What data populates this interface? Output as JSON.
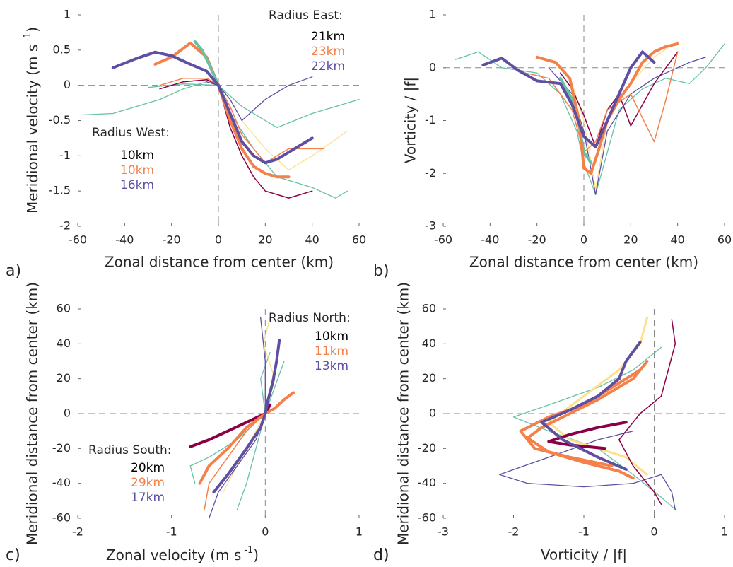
{
  "chart_data": [
    {
      "type": "line",
      "panel_label": "a)",
      "xlabel": "Zonal distance from center (km)",
      "ylabel": {
        "text": "Meridional velocity (m s",
        "superscript": "-1",
        "suffix": ")"
      },
      "xlim": [
        -60,
        60
      ],
      "ylim": [
        -2,
        1
      ],
      "xticks": [
        -60,
        -40,
        -20,
        0,
        20,
        40,
        60
      ],
      "yticks": [
        -2,
        -1.5,
        -1,
        -0.5,
        0,
        0.5,
        1
      ],
      "reference_lines": {
        "x": 0,
        "y": 0
      },
      "annotations": [
        {
          "title": "Radius East:",
          "entries": [
            {
              "text": "21km",
              "color": "#000000"
            },
            {
              "text": "23km",
              "color": "#f4804a"
            },
            {
              "text": "22km",
              "color": "#5e4fa2"
            }
          ]
        },
        {
          "title": "Radius West:",
          "entries": [
            {
              "text": "10km",
              "color": "#000000"
            },
            {
              "text": "10km",
              "color": "#f4804a"
            },
            {
              "text": "16km",
              "color": "#5e4fa2"
            }
          ]
        }
      ],
      "series": [
        {
          "color": "#66c2a5",
          "width": 1.3,
          "x": [
            -58,
            -45,
            -35,
            -25,
            -15,
            -5,
            0,
            5,
            15,
            25,
            40,
            50,
            55
          ],
          "values": [
            -0.42,
            -0.4,
            -0.3,
            -0.2,
            -0.05,
            0.05,
            0,
            -0.4,
            -0.9,
            -1.3,
            -1.45,
            -1.6,
            -1.5
          ]
        },
        {
          "color": "#66c2a5",
          "width": 1.3,
          "x": [
            -30,
            -15,
            0,
            10,
            25,
            40,
            50,
            60
          ],
          "values": [
            -0.03,
            0.02,
            0,
            -0.3,
            -0.6,
            -0.4,
            -0.3,
            -0.2
          ]
        },
        {
          "color": "#fee08b",
          "width": 1.3,
          "x": [
            -5,
            0,
            5,
            10,
            20,
            30,
            40,
            55
          ],
          "values": [
            0.1,
            0,
            -0.2,
            -0.5,
            -0.9,
            -1.2,
            -1.0,
            -0.65
          ]
        },
        {
          "color": "#5e4fa2",
          "width": 1.3,
          "x": [
            -5,
            0,
            5,
            10,
            20,
            30,
            40
          ],
          "values": [
            0.05,
            0,
            -0.2,
            -0.5,
            -0.2,
            0.0,
            0.12
          ]
        },
        {
          "color": "#8b0045",
          "width": 1.5,
          "x": [
            -25,
            -15,
            -5,
            0,
            5,
            10,
            15,
            20,
            30,
            40
          ],
          "values": [
            -0.05,
            0.05,
            0.08,
            0,
            -0.6,
            -1.0,
            -1.3,
            -1.5,
            -1.6,
            -1.5
          ]
        },
        {
          "color": "#f4804a",
          "width": 1.5,
          "x": [
            -25,
            -15,
            -5,
            0,
            5,
            10,
            20,
            30,
            45
          ],
          "values": [
            0,
            0.1,
            0.1,
            0,
            -0.3,
            -0.7,
            -1.1,
            -0.9,
            -0.9
          ]
        },
        {
          "color": "#f4804a",
          "width": 4,
          "x": [
            -27,
            -20,
            -12,
            -5,
            0,
            5,
            10,
            15,
            20,
            25,
            30
          ],
          "values": [
            0.3,
            0.4,
            0.6,
            0.4,
            0,
            -0.5,
            -0.9,
            -1.15,
            -1.25,
            -1.3,
            -1.3
          ]
        },
        {
          "color": "#66c2a5",
          "width": 4,
          "x": [
            -10,
            -7,
            -4,
            -2,
            0
          ],
          "values": [
            0.62,
            0.5,
            0.3,
            0.15,
            0
          ]
        },
        {
          "color": "#5e4fa2",
          "width": 4,
          "x": [
            -45,
            -35,
            -27,
            -20,
            -12,
            -5,
            0,
            5,
            10,
            15,
            20,
            25,
            30,
            35,
            40
          ],
          "values": [
            0.25,
            0.38,
            0.47,
            0.42,
            0.3,
            0.2,
            0,
            -0.4,
            -0.8,
            -1.0,
            -1.1,
            -1.05,
            -0.95,
            -0.85,
            -0.75
          ]
        }
      ]
    },
    {
      "type": "line",
      "panel_label": "b)",
      "xlabel": "Zonal distance from center (km)",
      "ylabel": "Vorticity / |f|",
      "xlim": [
        -60,
        60
      ],
      "ylim": [
        -3,
        1
      ],
      "xticks": [
        -60,
        -40,
        -20,
        0,
        20,
        40,
        60
      ],
      "yticks": [
        -3,
        -2,
        -1,
        0,
        1
      ],
      "reference_lines": {
        "x": 0,
        "y": 0
      },
      "annotations": [],
      "series": [
        {
          "color": "#66c2a5",
          "width": 1.3,
          "x": [
            -55,
            -45,
            -35,
            -20,
            -10,
            -3,
            0,
            5,
            10,
            15,
            25,
            35,
            45,
            52,
            60
          ],
          "values": [
            0.15,
            0.3,
            0.0,
            -0.1,
            -0.5,
            -1.2,
            -1.8,
            -2.4,
            -1.6,
            -0.8,
            -0.4,
            -0.2,
            -0.3,
            0.0,
            0.45
          ]
        },
        {
          "color": "#fee08b",
          "width": 1.3,
          "x": [
            -5,
            0,
            5,
            10,
            20,
            30,
            40
          ],
          "values": [
            -0.3,
            -1.0,
            -2.3,
            -1.0,
            -0.3,
            0.2,
            0.5
          ]
        },
        {
          "color": "#5e4fa2",
          "width": 1.3,
          "x": [
            -15,
            -5,
            0,
            5,
            10,
            20,
            30,
            45,
            52
          ],
          "values": [
            0.0,
            -0.5,
            -1.2,
            -2.4,
            -1.2,
            -0.5,
            -0.2,
            0.1,
            0.2
          ]
        },
        {
          "color": "#8b0045",
          "width": 1.5,
          "x": [
            -10,
            -5,
            0,
            5,
            10,
            15,
            20,
            30,
            40
          ],
          "values": [
            -0.1,
            -0.4,
            -0.9,
            -1.5,
            -0.8,
            -0.5,
            -1.1,
            -0.3,
            0.3
          ]
        },
        {
          "color": "#f4804a",
          "width": 1.5,
          "x": [
            -25,
            -15,
            -5,
            0,
            5,
            10,
            20,
            30,
            35,
            40
          ],
          "values": [
            -0.1,
            -0.2,
            -0.8,
            -1.6,
            -1.4,
            -0.8,
            -0.5,
            -1.4,
            -0.6,
            0.3
          ]
        },
        {
          "color": "#66c2a5",
          "width": 4,
          "x": [
            -10,
            -5,
            -2,
            0,
            3
          ],
          "values": [
            -0.2,
            -0.6,
            -1.1,
            -1.6,
            -1.8
          ]
        },
        {
          "color": "#f4804a",
          "width": 4,
          "x": [
            -20,
            -12,
            -6,
            -2,
            0,
            3,
            6,
            10,
            15,
            20,
            25,
            30,
            35,
            40
          ],
          "values": [
            0.2,
            0.1,
            -0.2,
            -1.0,
            -1.9,
            -2.0,
            -1.6,
            -1.0,
            -0.6,
            -0.3,
            0.1,
            0.3,
            0.4,
            0.45
          ]
        },
        {
          "color": "#5e4fa2",
          "width": 4,
          "x": [
            -43,
            -35,
            -28,
            -20,
            -10,
            -5,
            0,
            5,
            10,
            15,
            20,
            25,
            30
          ],
          "values": [
            0.05,
            0.18,
            -0.05,
            -0.25,
            -0.3,
            -0.7,
            -1.3,
            -1.5,
            -1.0,
            -0.5,
            0,
            0.3,
            0.1
          ]
        }
      ]
    },
    {
      "type": "line",
      "panel_label": "c)",
      "xlabel": {
        "text": "Zonal velocity (m s",
        "superscript": "-1",
        "suffix": ")"
      },
      "ylabel": "Meridional distance from center (km)",
      "xlim": [
        -2,
        1
      ],
      "ylim": [
        -60,
        60
      ],
      "xticks": [
        -2,
        -1,
        0,
        1
      ],
      "yticks": [
        -60,
        -40,
        -20,
        0,
        20,
        40,
        60
      ],
      "reference_lines": {
        "x": 0,
        "y": 0
      },
      "annotations": [
        {
          "title": "Radius North:",
          "entries": [
            {
              "text": "10km",
              "color": "#000000"
            },
            {
              "text": "11km",
              "color": "#f4804a"
            },
            {
              "text": "13km",
              "color": "#5e4fa2"
            }
          ]
        },
        {
          "title": "Radius South:",
          "entries": [
            {
              "text": "20km",
              "color": "#000000"
            },
            {
              "text": "29km",
              "color": "#f4804a"
            },
            {
              "text": "17km",
              "color": "#5e4fa2"
            }
          ]
        }
      ],
      "series": [
        {
          "color": "#66c2a5",
          "width": 1.3,
          "x": [
            0.05,
            -0.05,
            0,
            -0.3,
            -0.6,
            -0.8,
            -0.75
          ],
          "values": [
            35,
            20,
            0,
            -15,
            -25,
            -30,
            -40
          ]
        },
        {
          "color": "#66c2a5",
          "width": 1.3,
          "x": [
            0.2,
            0.1,
            0,
            -0.1,
            -0.2,
            -0.3
          ],
          "values": [
            30,
            15,
            0,
            -20,
            -40,
            -55
          ]
        },
        {
          "color": "#fee08b",
          "width": 1.3,
          "x": [
            0.05,
            -0.02,
            0.1,
            0,
            -0.2,
            -0.45
          ],
          "values": [
            55,
            40,
            20,
            0,
            -20,
            -45
          ]
        },
        {
          "color": "#5e4fa2",
          "width": 1.3,
          "x": [
            -0.05,
            0.0,
            0,
            -0.1,
            -0.3,
            -0.5,
            -0.6
          ],
          "values": [
            55,
            30,
            0,
            -15,
            -30,
            -45,
            -60
          ]
        },
        {
          "color": "#f4804a",
          "width": 1.5,
          "x": [
            0.1,
            0.05,
            0,
            -0.2,
            -0.4,
            -0.6,
            -0.65
          ],
          "values": [
            20,
            10,
            0,
            -10,
            -25,
            -40,
            -55
          ]
        },
        {
          "color": "#8b0045",
          "width": 4,
          "x": [
            0.05,
            0,
            -0.2,
            -0.4,
            -0.6,
            -0.8
          ],
          "values": [
            5,
            0,
            -5,
            -10,
            -15,
            -19
          ]
        },
        {
          "color": "#f4804a",
          "width": 4,
          "x": [
            0.3,
            0.2,
            0.1,
            0,
            -0.2,
            -0.4,
            -0.6,
            -0.7
          ],
          "values": [
            12,
            8,
            3,
            0,
            -8,
            -20,
            -30,
            -40
          ]
        },
        {
          "color": "#5e4fa2",
          "width": 4,
          "x": [
            0.15,
            0.12,
            0.08,
            0.03,
            0,
            -0.05,
            -0.2,
            -0.4,
            -0.55
          ],
          "values": [
            42,
            30,
            18,
            8,
            0,
            -8,
            -20,
            -35,
            -45
          ]
        }
      ]
    },
    {
      "type": "line",
      "panel_label": "d)",
      "xlabel": "Vorticity / |f|",
      "ylabel": "Meridional distance from center (km)",
      "xlim": [
        -3,
        1
      ],
      "ylim": [
        -60,
        60
      ],
      "xticks": [
        -3,
        -2,
        -1,
        0,
        1
      ],
      "yticks": [
        -60,
        -40,
        -20,
        0,
        20,
        40,
        60
      ],
      "reference_lines": {
        "x": 0,
        "y": 0
      },
      "annotations": [],
      "series": [
        {
          "color": "#66c2a5",
          "width": 1.3,
          "x": [
            0.1,
            -0.3,
            -0.8,
            -1.5,
            -2.0,
            -1.5,
            -0.8,
            -0.3,
            0.1,
            0.3
          ],
          "values": [
            38,
            25,
            15,
            5,
            -2,
            -10,
            -20,
            -35,
            -48,
            -55
          ]
        },
        {
          "color": "#5e4fa2",
          "width": 1.3,
          "x": [
            -0.3,
            -0.8,
            -1.5,
            -2.2,
            -1.8,
            -1.0,
            -0.3,
            0.1,
            0.25,
            0.3
          ],
          "values": [
            -10,
            -15,
            -25,
            -35,
            -40,
            -42,
            -40,
            -35,
            -45,
            -55
          ]
        },
        {
          "color": "#fee08b",
          "width": 3,
          "x": [
            -0.1,
            -0.2,
            -0.5,
            -1.0,
            -1.5,
            -1.2,
            -0.8,
            -0.4,
            -0.1
          ],
          "values": [
            55,
            40,
            25,
            10,
            -5,
            -15,
            -20,
            -25,
            -35
          ]
        },
        {
          "color": "#8b0045",
          "width": 1.5,
          "x": [
            0.25,
            0.3,
            0.2,
            0.1,
            -0.2,
            -0.5,
            -0.3,
            0.0,
            0.1
          ],
          "values": [
            54,
            40,
            25,
            10,
            0,
            -15,
            -30,
            -45,
            -52
          ]
        },
        {
          "color": "#8b0045",
          "width": 4,
          "x": [
            -0.4,
            -0.8,
            -1.2,
            -1.5,
            -1.2,
            -0.7
          ],
          "values": [
            -5,
            -8,
            -12,
            -16,
            -18,
            -20
          ]
        },
        {
          "color": "#f4804a",
          "width": 4,
          "x": [
            -0.2,
            -0.6,
            -1.0,
            -1.5,
            -1.9,
            -1.7,
            -1.2,
            -0.6
          ],
          "values": [
            25,
            15,
            5,
            -2,
            -10,
            -20,
            -25,
            -30
          ]
        },
        {
          "color": "#f4804a",
          "width": 4,
          "x": [
            -0.1,
            -0.3,
            -0.8,
            -1.2,
            -1.6,
            -1.8,
            -1.5,
            -1.0,
            -0.5,
            -0.3
          ],
          "values": [
            30,
            20,
            8,
            0,
            -8,
            -14,
            -22,
            -28,
            -33,
            -37
          ]
        },
        {
          "color": "#5e4fa2",
          "width": 4,
          "x": [
            -0.2,
            -0.4,
            -0.5,
            -0.8,
            -1.2,
            -1.6,
            -1.3,
            -0.8,
            -0.4
          ],
          "values": [
            41,
            30,
            20,
            10,
            2,
            -5,
            -15,
            -25,
            -32
          ]
        }
      ]
    }
  ]
}
